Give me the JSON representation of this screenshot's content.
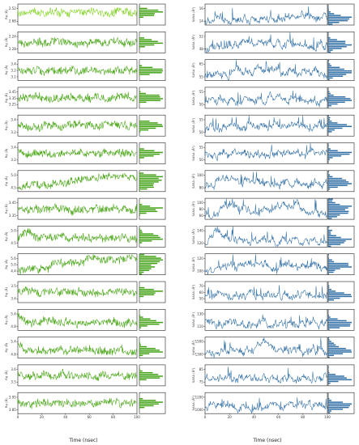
{
  "chart_data": [
    {
      "type": "line",
      "column": "left",
      "xlabel": "Time (nsec)",
      "xlim": [
        0,
        100
      ],
      "xticks": [
        "0",
        "20",
        "40",
        "60",
        "80",
        "100"
      ],
      "colors": {
        "line": "#43a30e",
        "line_alt": "#7fd11e",
        "hist": "#3fa012"
      },
      "panels": [
        {
          "ylabel": "Rg (Å)",
          "yticks": [
            "2.52",
            "2.68"
          ],
          "ylim": [
            2.5,
            2.7
          ],
          "base": 0.6,
          "drift": [],
          "line_color": "#7fd11e"
        },
        {
          "ylabel": "Rg (Å)",
          "yticks": [
            "2.24",
            "2.28"
          ],
          "ylim": [
            2.22,
            2.3
          ],
          "base": 0.5,
          "drift": [],
          "line_color": "#43a30e"
        },
        {
          "ylabel": "Rg (Å)",
          "yticks": [
            "3.4",
            "3.2",
            "3.1"
          ],
          "ylim": [
            3.05,
            3.45
          ],
          "base": 0.45,
          "drift": [],
          "line_color": "#43a30e"
        },
        {
          "ylabel": "Rg (Å)",
          "yticks": [
            "3.45",
            "3.35",
            "3.25"
          ],
          "ylim": [
            3.2,
            3.5
          ],
          "base": 0.5,
          "drift": [],
          "line_color": "#43a30e"
        },
        {
          "ylabel": "Rg (Å)",
          "yticks": [
            "3.4",
            "3.2"
          ],
          "ylim": [
            3.1,
            3.5
          ],
          "base": 0.5,
          "drift": [],
          "line_color": "#43a30e"
        },
        {
          "ylabel": "Rg (Å)",
          "yticks": [
            "3.4",
            "3.2"
          ],
          "ylim": [
            3.1,
            3.5
          ],
          "base": 0.5,
          "drift": [],
          "line_color": "#43a30e"
        },
        {
          "ylabel": "Rg (Å)",
          "yticks": [
            "5.0",
            "4.5"
          ],
          "ylim": [
            4.3,
            5.3
          ],
          "base": 0.25,
          "drift": [
            [
              0,
              0.25
            ],
            [
              30,
              0.3
            ],
            [
              50,
              0.5
            ],
            [
              65,
              0.72
            ],
            [
              100,
              0.65
            ]
          ],
          "line_color": "#43a30e"
        },
        {
          "ylabel": "Rg (Å)",
          "yticks": [
            "3.45",
            "3.35"
          ],
          "ylim": [
            3.3,
            3.5
          ],
          "base": 0.5,
          "drift": [],
          "line_color": "#43a30e"
        },
        {
          "ylabel": "Rg (Å)",
          "yticks": [
            "5.0",
            "4.5"
          ],
          "ylim": [
            4.3,
            5.2
          ],
          "base": 0.35,
          "drift": [
            [
              0,
              0.35
            ],
            [
              8,
              0.75
            ],
            [
              15,
              0.45
            ],
            [
              100,
              0.42
            ]
          ],
          "line_color": "#43a30e"
        },
        {
          "ylabel": "Rg (Å)",
          "yticks": [
            "5.6",
            "5.0",
            "4.4"
          ],
          "ylim": [
            4.3,
            5.8
          ],
          "base": 0.2,
          "drift": [
            [
              0,
              0.2
            ],
            [
              25,
              0.22
            ],
            [
              30,
              0.5
            ],
            [
              55,
              0.55
            ],
            [
              60,
              0.75
            ],
            [
              100,
              0.8
            ]
          ],
          "line_color": "#43a30e"
        },
        {
          "ylabel": "Rg (Å)",
          "yticks": [
            "3.5",
            "3.4"
          ],
          "ylim": [
            3.3,
            3.6
          ],
          "base": 0.5,
          "drift": [],
          "line_color": "#43a30e"
        },
        {
          "ylabel": "Rg (Å)",
          "yticks": [
            "5.4",
            "4.8"
          ],
          "ylim": [
            4.5,
            5.6
          ],
          "base": 0.35,
          "drift": [
            [
              0,
              0.7
            ],
            [
              5,
              0.35
            ],
            [
              100,
              0.4
            ]
          ],
          "line_color": "#43a30e"
        },
        {
          "ylabel": "Rg (Å)",
          "yticks": [
            "5.4",
            "4.8"
          ],
          "ylim": [
            4.5,
            5.6
          ],
          "base": 0.3,
          "drift": [
            [
              0,
              0.75
            ],
            [
              6,
              0.3
            ],
            [
              70,
              0.35
            ],
            [
              100,
              0.3
            ]
          ],
          "line_color": "#43a30e"
        },
        {
          "ylabel": "Rg (Å)",
          "yticks": [
            "3.6",
            "3.5"
          ],
          "ylim": [
            3.45,
            3.65
          ],
          "base": 0.5,
          "drift": [],
          "line_color": "#43a30e"
        },
        {
          "ylabel": "Rg (Å)",
          "yticks": [
            "3.95",
            "3.85"
          ],
          "ylim": [
            3.8,
            4.0
          ],
          "base": 0.5,
          "drift": [],
          "line_color": "#43a30e"
        }
      ]
    },
    {
      "type": "line",
      "column": "right",
      "xlabel": "Time (nsec)",
      "xlim": [
        0,
        100
      ],
      "xticks": [
        "0",
        "20",
        "40",
        "60",
        "80",
        "100"
      ],
      "colors": {
        "line": "#2e6da4",
        "hist": "#2e6da4"
      },
      "panels": [
        {
          "ylabel": "SASA (Å²)",
          "yticks": [
            "16",
            "14"
          ],
          "ylim": [
            13,
            17
          ],
          "base": 0.35,
          "drift": [],
          "line_color": "#2e6da4"
        },
        {
          "ylabel": "SASA (Å²)",
          "yticks": [
            "52",
            "48"
          ],
          "ylim": [
            46,
            54
          ],
          "base": 0.35,
          "drift": [
            [
              0,
              0.3
            ],
            [
              40,
              0.45
            ],
            [
              100,
              0.35
            ]
          ],
          "line_color": "#2e6da4"
        },
        {
          "ylabel": "SASA (Å²)",
          "yticks": [
            "65",
            "55"
          ],
          "ylim": [
            50,
            70
          ],
          "base": 0.3,
          "drift": [
            [
              0,
              0.25
            ],
            [
              50,
              0.5
            ],
            [
              100,
              0.4
            ]
          ],
          "line_color": "#2e6da4"
        },
        {
          "ylabel": "SASA (Å²)",
          "yticks": [
            "55",
            "50"
          ],
          "ylim": [
            47,
            58
          ],
          "base": 0.4,
          "drift": [],
          "line_color": "#2e6da4"
        },
        {
          "ylabel": "SASA (Å²)",
          "yticks": [
            "55",
            "50"
          ],
          "ylim": [
            47,
            58
          ],
          "base": 0.35,
          "drift": [
            [
              0,
              0.3
            ],
            [
              60,
              0.55
            ],
            [
              100,
              0.4
            ]
          ],
          "line_color": "#2e6da4"
        },
        {
          "ylabel": "SASA (Å²)",
          "yticks": [
            "55",
            "50"
          ],
          "ylim": [
            47,
            58
          ],
          "base": 0.45,
          "drift": [],
          "line_color": "#2e6da4"
        },
        {
          "ylabel": "SASA (Å²)",
          "yticks": [
            "100",
            "80"
          ],
          "ylim": [
            70,
            110
          ],
          "base": 0.3,
          "drift": [
            [
              0,
              0.25
            ],
            [
              20,
              0.7
            ],
            [
              40,
              0.4
            ],
            [
              100,
              0.3
            ]
          ],
          "line_color": "#2e6da4"
        },
        {
          "ylabel": "SASA (Å²)",
          "yticks": [
            "100",
            "80",
            "60"
          ],
          "ylim": [
            55,
            110
          ],
          "base": 0.3,
          "drift": [
            [
              0,
              0.2
            ],
            [
              20,
              0.7
            ],
            [
              40,
              0.3
            ],
            [
              75,
              0.75
            ],
            [
              82,
              0.3
            ],
            [
              100,
              0.3
            ]
          ],
          "line_color": "#2e6da4"
        },
        {
          "ylabel": "SASA (Å²)",
          "yticks": [
            "140",
            "120"
          ],
          "ylim": [
            110,
            150
          ],
          "base": 0.3,
          "drift": [
            [
              0,
              0.2
            ],
            [
              12,
              0.75
            ],
            [
              20,
              0.35
            ],
            [
              100,
              0.3
            ]
          ],
          "line_color": "#2e6da4"
        },
        {
          "ylabel": "SASA (Å²)",
          "yticks": [
            "120",
            "100"
          ],
          "ylim": [
            95,
            130
          ],
          "base": 0.35,
          "drift": [
            [
              0,
              0.25
            ],
            [
              30,
              0.45
            ],
            [
              100,
              0.4
            ]
          ],
          "line_color": "#2e6da4"
        },
        {
          "ylabel": "SASA (Å²)",
          "yticks": [
            "70",
            "60",
            "50"
          ],
          "ylim": [
            48,
            75
          ],
          "base": 0.4,
          "drift": [],
          "line_color": "#2e6da4"
        },
        {
          "ylabel": "SASA (Å²)",
          "yticks": [
            "130",
            "110"
          ],
          "ylim": [
            100,
            140
          ],
          "base": 0.35,
          "drift": [
            [
              0,
              0.55
            ],
            [
              8,
              0.3
            ],
            [
              100,
              0.35
            ]
          ],
          "line_color": "#2e6da4"
        },
        {
          "ylabel": "SASA (Å²)",
          "yticks": [
            "1500",
            "1300"
          ],
          "ylim": [
            1200,
            1600
          ],
          "base": 0.3,
          "drift": [
            [
              0,
              0.2
            ],
            [
              30,
              0.3
            ],
            [
              50,
              0.65
            ],
            [
              62,
              0.4
            ],
            [
              100,
              0.35
            ]
          ],
          "line_color": "#2e6da4"
        },
        {
          "ylabel": "SASA (Å²)",
          "yticks": [
            "85",
            "75"
          ],
          "ylim": [
            70,
            90
          ],
          "base": 0.35,
          "drift": [],
          "line_color": "#2e6da4"
        },
        {
          "ylabel": "SASA (Å²)",
          "yticks": [
            "1200",
            "1000"
          ],
          "ylim": [
            950,
            1250
          ],
          "base": 0.35,
          "drift": [],
          "line_color": "#2e6da4"
        }
      ]
    }
  ]
}
